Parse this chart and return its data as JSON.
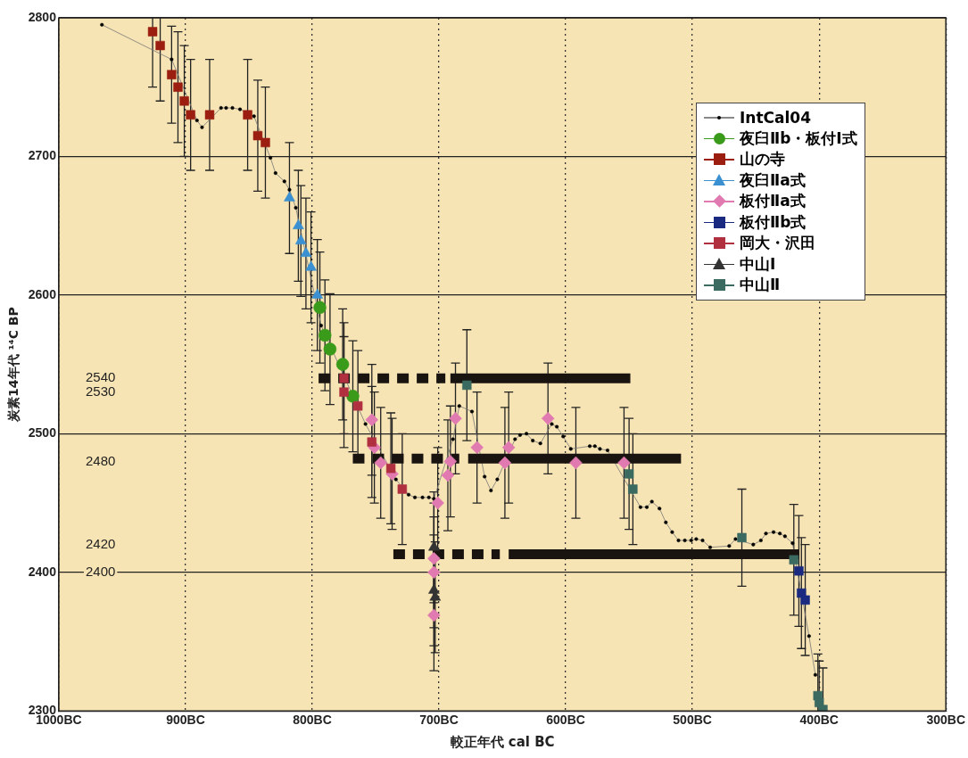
{
  "chart_data": {
    "type": "scatter",
    "xlabel": "較正年代 cal BC",
    "ylabel": "炭素14年代 ¹⁴C BP",
    "xlim": [
      -1000,
      -300
    ],
    "ylim": [
      2300,
      2800
    ],
    "xticks": [
      {
        "value": -1000,
        "label": "1000BC"
      },
      {
        "value": -900,
        "label": "900BC"
      },
      {
        "value": -800,
        "label": "800BC"
      },
      {
        "value": -700,
        "label": "700BC"
      },
      {
        "value": -600,
        "label": "600BC"
      },
      {
        "value": -500,
        "label": "500BC"
      },
      {
        "value": -400,
        "label": "400BC"
      },
      {
        "value": -300,
        "label": "300BC"
      }
    ],
    "yticks": [
      2300,
      2400,
      2500,
      2600,
      2700,
      2800
    ],
    "grid": true,
    "legend": "top right",
    "y2lim": [
      2300,
      2800
    ],
    "y2ticks": [
      2540,
      2530,
      2480,
      2420,
      2400
    ],
    "series": [
      {
        "name": "IntCal04",
        "type": "line",
        "color": "#000000",
        "marker": "circle",
        "x": [
          -966,
          -911,
          -891,
          -887,
          -872,
          -868,
          -863,
          -857,
          -846,
          -833,
          -829,
          -822,
          -818,
          -813,
          -793,
          -758,
          -734,
          -724,
          -719,
          -713,
          -708,
          -704,
          -689,
          -684,
          -674,
          -664,
          -659,
          -654,
          -640,
          -636,
          -631,
          -626,
          -620,
          -611,
          -607,
          -602,
          -596,
          -581,
          -577,
          -573,
          -567,
          -541,
          -536,
          -532,
          -526,
          -521,
          -516,
          -511,
          -506,
          -501,
          -497,
          -492,
          -486,
          -471,
          -466,
          -452,
          -446,
          -442,
          -436,
          -431,
          -427,
          -421,
          -408,
          -403
        ],
        "values": [
          2795,
          2770,
          2726,
          2721,
          2735,
          2735,
          2735,
          2734,
          2729,
          2699,
          2688,
          2682,
          2676,
          2663,
          2578,
          2507,
          2467,
          2456,
          2454,
          2454,
          2454,
          2453,
          2496,
          2520,
          2516,
          2469,
          2459,
          2467,
          2496,
          2499,
          2500,
          2495,
          2493,
          2507,
          2505,
          2498,
          2489,
          2491,
          2491,
          2489,
          2488,
          2447,
          2447,
          2451,
          2446,
          2436,
          2429,
          2423,
          2423,
          2423,
          2424,
          2423,
          2418,
          2419,
          2424,
          2420,
          2423,
          2428,
          2429,
          2428,
          2426,
          2421,
          2354,
          2326
        ]
      },
      {
        "name": "夜臼Ⅱb・板付Ⅰ式",
        "color": "#3a9a1a",
        "marker": "circle",
        "x": [
          -794,
          -790,
          -786,
          -776,
          -768
        ],
        "values": [
          2591,
          2571,
          2561,
          2550,
          2527
        ],
        "errors": [
          40,
          40,
          40,
          40,
          40
        ]
      },
      {
        "name": "山の寺",
        "color": "#9b1e10",
        "marker": "square",
        "x": [
          -926,
          -920,
          -911,
          -906,
          -901,
          -896,
          -881,
          -851,
          -843,
          -837
        ],
        "values": [
          2790,
          2780,
          2759,
          2750,
          2740,
          2730,
          2730,
          2730,
          2715,
          2710
        ],
        "errors": [
          40,
          40,
          35,
          40,
          40,
          40,
          40,
          40,
          40,
          40
        ]
      },
      {
        "name": "夜臼Ⅱa式",
        "color": "#3a90d0",
        "marker": "triangle",
        "x": [
          -818,
          -811,
          -809,
          -805,
          -801,
          -796
        ],
        "values": [
          2670,
          2650,
          2639,
          2630,
          2620,
          2600
        ],
        "errors": [
          40,
          40,
          40,
          40,
          40,
          40
        ]
      },
      {
        "name": "板付Ⅱa式",
        "color": "#e07ab0",
        "marker": "diamond",
        "x": [
          -753,
          -751,
          -746,
          -737,
          -701,
          -704,
          -704,
          -704,
          -693,
          -691,
          -687,
          -670,
          -648,
          -645,
          -614,
          -592,
          -554
        ],
        "values": [
          2510,
          2490,
          2479,
          2471,
          2450,
          2410,
          2400,
          2369,
          2470,
          2480,
          2511,
          2490,
          2479,
          2490,
          2511,
          2479,
          2479
        ],
        "errors": [
          40,
          40,
          40,
          40,
          40,
          40,
          40,
          40,
          40,
          40,
          40,
          40,
          40,
          40,
          40,
          40,
          40
        ]
      },
      {
        "name": "板付Ⅱb式",
        "color": "#1a2a80",
        "marker": "square",
        "x": [
          -416,
          -414,
          -411
        ],
        "values": [
          2401,
          2385,
          2380
        ],
        "errors": [
          40,
          40,
          40
        ]
      },
      {
        "name": "岡大・沢田",
        "color": "#b03040",
        "marker": "square",
        "x": [
          -775,
          -775,
          -764,
          -753,
          -738,
          -729
        ],
        "values": [
          2540,
          2530,
          2520,
          2494,
          2475,
          2460
        ],
        "errors": [
          40,
          40,
          40,
          40,
          40,
          40
        ]
      },
      {
        "name": "中山Ⅰ",
        "color": "#333333",
        "marker": "triangle",
        "x": [
          -704,
          -704,
          -703
        ],
        "values": [
          2418,
          2387,
          2382
        ],
        "errors": [
          40,
          40,
          40
        ]
      },
      {
        "name": "中山Ⅱ",
        "color": "#3a6a60",
        "marker": "square",
        "x": [
          -678,
          -550,
          -547,
          -461,
          -420,
          -401,
          -400,
          -397
        ],
        "values": [
          2535,
          2471,
          2460,
          2425,
          2409,
          2311,
          2306,
          2301
        ],
        "errors": [
          40,
          40,
          40,
          35,
          40,
          30,
          30,
          30
        ]
      },
      {
        "type": "line",
        "color": "#1a1410",
        "marker": "none",
        "line_style": "dashed",
        "x": [
          -795,
          -695
        ],
        "values": [
          2540,
          2540
        ]
      },
      {
        "type": "line",
        "color": "#1a1410",
        "marker": "none",
        "line_style": "solid",
        "x": [
          -691,
          -549
        ],
        "values": [
          2540,
          2540
        ]
      },
      {
        "type": "line",
        "color": "#1a1410",
        "marker": "none",
        "line_style": "dashed",
        "x": [
          -768,
          -684
        ],
        "values": [
          2482,
          2482
        ]
      },
      {
        "type": "line",
        "color": "#1a1410",
        "marker": "none",
        "line_style": "solid",
        "x": [
          -677,
          -509
        ],
        "values": [
          2482,
          2482
        ]
      },
      {
        "type": "line",
        "color": "#1a1410",
        "marker": "none",
        "line_style": "dashed",
        "x": [
          -736,
          -652
        ],
        "values": [
          2413,
          2413
        ]
      },
      {
        "type": "line",
        "color": "#1a1410",
        "marker": "none",
        "line_style": "solid",
        "x": [
          -645,
          -416
        ],
        "values": [
          2413,
          2413
        ]
      }
    ]
  }
}
